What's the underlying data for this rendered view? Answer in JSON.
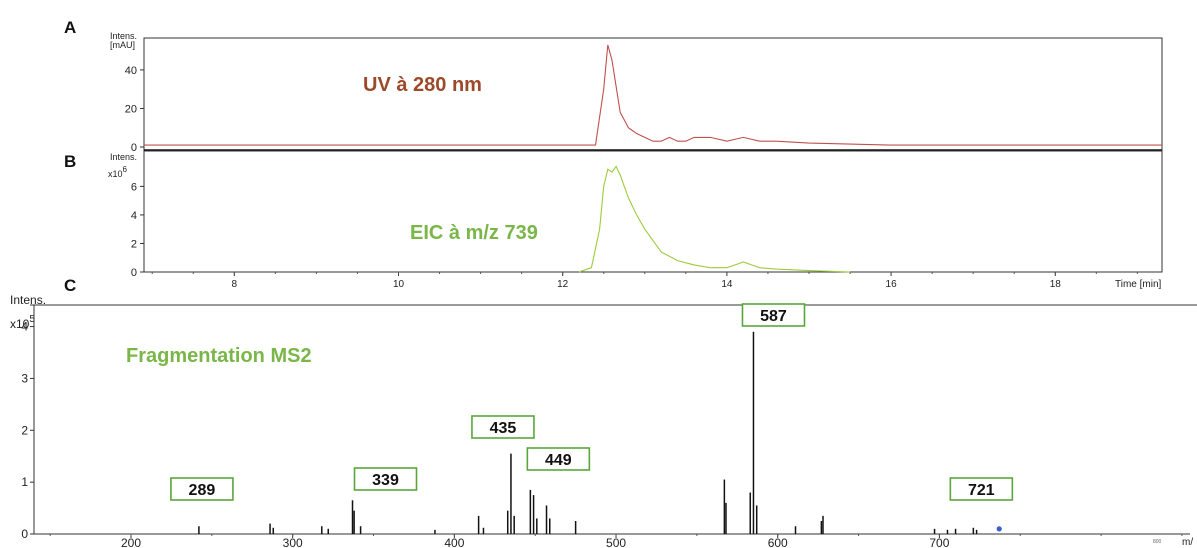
{
  "panels": {
    "A": {
      "letter": "A",
      "ylabel_line1": "Intens.",
      "ylabel_line2": "[mAU]",
      "annotation": "UV à 280 nm",
      "annotation_color": "#9c4a2a",
      "trace_color": "#c0504d",
      "yticks": [
        "0",
        "20",
        "40"
      ]
    },
    "B": {
      "letter": "B",
      "ylabel_line1": "Intens.",
      "ylabel_scale": "x10",
      "ylabel_exp": "6",
      "annotation": "EIC à m/z 739",
      "annotation_color": "#7ab648",
      "trace_color": "#9ccc3c",
      "yticks": [
        "0",
        "2",
        "4",
        "6"
      ],
      "xticks": [
        "8",
        "10",
        "12",
        "14",
        "16",
        "18"
      ],
      "xlabel": "Time [min]"
    },
    "C": {
      "letter": "C",
      "ylabel_line1": "Intens.",
      "ylabel_scale": "x10",
      "ylabel_exp": "5",
      "annotation": "Fragmentation MS2",
      "annotation_color": "#7ab648",
      "yticks": [
        "0",
        "1",
        "2",
        "3",
        "4"
      ],
      "xticks": [
        "200",
        "300",
        "400",
        "500",
        "600",
        "700"
      ],
      "xlabel": "m/",
      "tiny_tick": "800",
      "peak_labels": [
        "289",
        "339",
        "435",
        "449",
        "587",
        "721"
      ]
    }
  },
  "chart_data": [
    {
      "type": "line",
      "panel": "A",
      "ylabel": "Intens. [mAU]",
      "xlim": [
        6.9,
        19.3
      ],
      "ylim": [
        0,
        55
      ],
      "series": [
        {
          "x": [
            6.9,
            8.0,
            9.0,
            10.0,
            11.0,
            12.0,
            12.4,
            12.5,
            12.55,
            12.6,
            12.7,
            12.8,
            12.9,
            13.0,
            13.1,
            13.2,
            13.3,
            13.4,
            13.5,
            13.6,
            13.8,
            14.0,
            14.2,
            14.4,
            14.6,
            15.0,
            15.5,
            16.0,
            17.0,
            18.0,
            19.0,
            19.3
          ],
          "y": [
            1,
            1,
            1,
            1,
            1,
            1,
            1,
            30,
            53,
            45,
            18,
            10,
            7,
            5,
            3,
            3,
            5,
            3,
            3,
            5,
            5,
            3,
            5,
            3,
            3,
            2,
            1.5,
            1,
            1,
            1,
            1,
            1
          ]
        }
      ]
    },
    {
      "type": "line",
      "panel": "B",
      "ylabel": "Intens. x10^6",
      "xlabel": "Time [min]",
      "xlim": [
        6.9,
        19.3
      ],
      "ylim": [
        0,
        8.2
      ],
      "series": [
        {
          "x": [
            12.2,
            12.35,
            12.45,
            12.5,
            12.55,
            12.6,
            12.65,
            12.7,
            12.8,
            12.9,
            13.0,
            13.1,
            13.2,
            13.4,
            13.6,
            13.8,
            14.0,
            14.1,
            14.2,
            14.3,
            14.4,
            14.6,
            15.0,
            15.5
          ],
          "y": [
            0,
            0.3,
            3.0,
            6.0,
            7.2,
            7.0,
            7.4,
            6.8,
            5.2,
            4.0,
            3.0,
            2.2,
            1.4,
            0.8,
            0.5,
            0.3,
            0.3,
            0.5,
            0.7,
            0.5,
            0.3,
            0.2,
            0.1,
            0
          ]
        }
      ]
    },
    {
      "type": "bar",
      "panel": "C",
      "ylabel": "Intens. x10^5",
      "xlabel": "m/",
      "xlim": [
        140,
        855
      ],
      "ylim": [
        0,
        4.3
      ],
      "x": [
        242,
        286,
        288,
        318,
        322,
        337,
        338,
        342,
        388,
        415,
        418,
        433,
        435,
        437,
        447,
        449,
        451,
        457,
        459,
        475,
        567,
        568,
        583,
        585,
        587,
        611,
        627,
        628,
        697,
        705,
        710,
        721,
        723
      ],
      "values": [
        0.15,
        0.2,
        0.12,
        0.15,
        0.1,
        0.65,
        0.45,
        0.15,
        0.08,
        0.35,
        0.12,
        0.45,
        1.55,
        0.35,
        0.85,
        0.75,
        0.3,
        0.55,
        0.3,
        0.25,
        1.05,
        0.6,
        0.8,
        3.9,
        0.55,
        0.15,
        0.25,
        0.35,
        0.1,
        0.08,
        0.1,
        0.12,
        0.08
      ],
      "marker": {
        "x": 737,
        "y": 0.08,
        "color": "#3a5fcd"
      },
      "labeled_peaks": [
        {
          "label": "289",
          "x": 242
        },
        {
          "label": "339",
          "x": 337
        },
        {
          "label": "435",
          "x": 435
        },
        {
          "label": "449",
          "x": 447
        },
        {
          "label": "587",
          "x": 585
        },
        {
          "label": "721",
          "x": 721
        }
      ]
    }
  ]
}
